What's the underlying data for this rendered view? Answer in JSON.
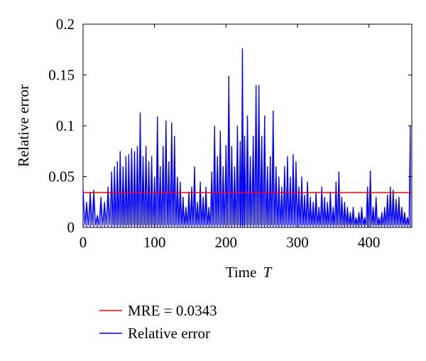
{
  "chart_data": {
    "type": "line",
    "xlabel": "Time",
    "xlabel_italic": "T",
    "ylabel": "Relative error",
    "xlim": [
      0,
      460
    ],
    "ylim": [
      0,
      0.2
    ],
    "xticks": [
      0,
      100,
      200,
      300,
      400
    ],
    "xtick_labels": [
      "0",
      "100",
      "200",
      "300",
      "400"
    ],
    "yticks": [
      0,
      0.05,
      0.1,
      0.15,
      0.2
    ],
    "ytick_labels": [
      "0",
      "0.05",
      "0.1",
      "0.15",
      "0.2"
    ],
    "grid": false,
    "legend_position": "bottom",
    "series": [
      {
        "name": "MRE = 0.0343",
        "color": "#ff0000",
        "style": "horizontal-line",
        "y": 0.0343
      },
      {
        "name": "Relative error",
        "color": "#0000ff",
        "style": "spikes",
        "peaks": [
          [
            0,
            0.038
          ],
          [
            5,
            0.025
          ],
          [
            10,
            0.035
          ],
          [
            15,
            0.037
          ],
          [
            20,
            0.012
          ],
          [
            25,
            0.03
          ],
          [
            30,
            0.025
          ],
          [
            35,
            0.04
          ],
          [
            40,
            0.055
          ],
          [
            44,
            0.06
          ],
          [
            48,
            0.065
          ],
          [
            52,
            0.075
          ],
          [
            56,
            0.06
          ],
          [
            60,
            0.07
          ],
          [
            64,
            0.072
          ],
          [
            68,
            0.078
          ],
          [
            72,
            0.075
          ],
          [
            76,
            0.08
          ],
          [
            80,
            0.113
          ],
          [
            84,
            0.07
          ],
          [
            88,
            0.08
          ],
          [
            92,
            0.065
          ],
          [
            96,
            0.07
          ],
          [
            100,
            0.05
          ],
          [
            104,
            0.109
          ],
          [
            108,
            0.06
          ],
          [
            112,
            0.08
          ],
          [
            116,
            0.105
          ],
          [
            120,
            0.065
          ],
          [
            124,
            0.103
          ],
          [
            128,
            0.09
          ],
          [
            132,
            0.05
          ],
          [
            136,
            0.045
          ],
          [
            140,
            0.03
          ],
          [
            144,
            0.02
          ],
          [
            148,
            0.035
          ],
          [
            152,
            0.04
          ],
          [
            156,
            0.06
          ],
          [
            160,
            0.025
          ],
          [
            164,
            0.045
          ],
          [
            168,
            0.03
          ],
          [
            172,
            0.04
          ],
          [
            176,
            0.02
          ],
          [
            180,
            0.055
          ],
          [
            184,
            0.1
          ],
          [
            188,
            0.07
          ],
          [
            192,
            0.095
          ],
          [
            196,
            0.06
          ],
          [
            200,
            0.081
          ],
          [
            204,
            0.149
          ],
          [
            208,
            0.08
          ],
          [
            212,
            0.06
          ],
          [
            216,
            0.1
          ],
          [
            220,
            0.085
          ],
          [
            223,
            0.176
          ],
          [
            226,
            0.09
          ],
          [
            230,
            0.11
          ],
          [
            234,
            0.07
          ],
          [
            238,
            0.09
          ],
          [
            242,
            0.14
          ],
          [
            246,
            0.14
          ],
          [
            250,
            0.09
          ],
          [
            254,
            0.11
          ],
          [
            258,
            0.06
          ],
          [
            262,
            0.07
          ],
          [
            266,
            0.115
          ],
          [
            270,
            0.06
          ],
          [
            274,
            0.05
          ],
          [
            278,
            0.04
          ],
          [
            282,
            0.06
          ],
          [
            286,
            0.07
          ],
          [
            290,
            0.05
          ],
          [
            294,
            0.072
          ],
          [
            298,
            0.065
          ],
          [
            302,
            0.04
          ],
          [
            306,
            0.05
          ],
          [
            310,
            0.032
          ],
          [
            314,
            0.045
          ],
          [
            318,
            0.03
          ],
          [
            322,
            0.025
          ],
          [
            326,
            0.035
          ],
          [
            330,
            0.02
          ],
          [
            334,
            0.04
          ],
          [
            338,
            0.03
          ],
          [
            342,
            0.025
          ],
          [
            346,
            0.035
          ],
          [
            350,
            0.02
          ],
          [
            354,
            0.045
          ],
          [
            358,
            0.055
          ],
          [
            362,
            0.03
          ],
          [
            366,
            0.025
          ],
          [
            370,
            0.02
          ],
          [
            374,
            0.015
          ],
          [
            378,
            0.02
          ],
          [
            382,
            0.01
          ],
          [
            386,
            0.015
          ],
          [
            390,
            0.02
          ],
          [
            394,
            0.01
          ],
          [
            398,
            0.04
          ],
          [
            402,
            0.056
          ],
          [
            406,
            0.02
          ],
          [
            410,
            0.03
          ],
          [
            414,
            0.01
          ],
          [
            418,
            0.015
          ],
          [
            422,
            0.02
          ],
          [
            426,
            0.032
          ],
          [
            430,
            0.04
          ],
          [
            434,
            0.037
          ],
          [
            438,
            0.028
          ],
          [
            442,
            0.03
          ],
          [
            446,
            0.02
          ],
          [
            450,
            0.015
          ],
          [
            454,
            0.01
          ],
          [
            458,
            0.1
          ]
        ]
      }
    ]
  }
}
